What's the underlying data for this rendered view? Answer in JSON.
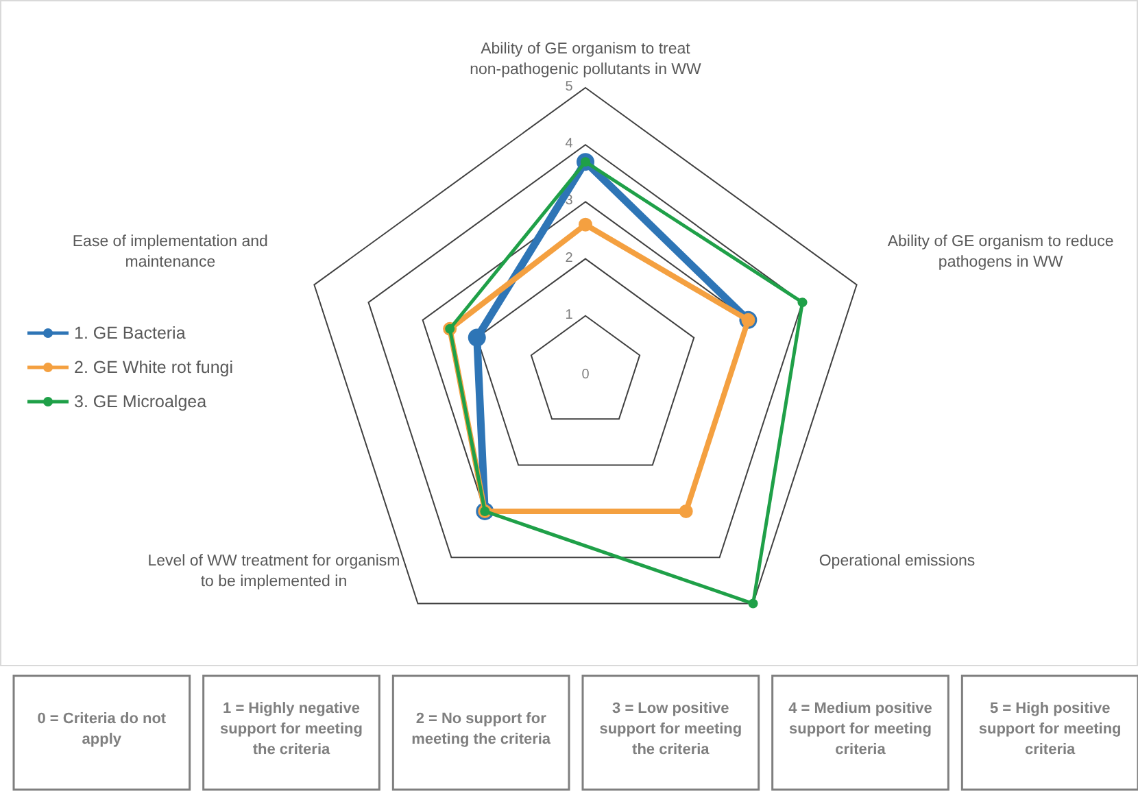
{
  "chart_data": {
    "type": "radar",
    "categories": [
      "Ability of GE organism to treat non-pathogenic pollutants in WW",
      "Ability of GE organism to reduce pathogens in WW",
      "Operational emissions",
      "Level of WW treatment for organism to be implemented in",
      "Ease of implementation and maintenance"
    ],
    "series": [
      {
        "name": "1. GE Bacteria",
        "color": "#2e75b6",
        "values": [
          3.7,
          3,
          null,
          3,
          2
        ]
      },
      {
        "name": "2. GE White rot fungi",
        "color": "#f4a040",
        "values": [
          2.6,
          3,
          3,
          3,
          2.5
        ]
      },
      {
        "name": "3. GE Microalgea",
        "color": "#1fa048",
        "values": [
          3.7,
          4,
          5,
          3,
          2.5
        ]
      }
    ],
    "ylim": [
      0,
      5
    ],
    "yticks": [
      0,
      1,
      2,
      3,
      4,
      5
    ],
    "grid": true,
    "legend": "left",
    "marker": "circle",
    "annotations": [
      "0 = Criteria do not apply",
      "1 = Highly negative support for meeting the criteria",
      "2 = No support for meeting the criteria",
      "3 = Low positive support for meeting the criteria",
      "4 = Medium positive support for meeting criteria",
      "5 = High positive support for meeting criteria"
    ]
  }
}
